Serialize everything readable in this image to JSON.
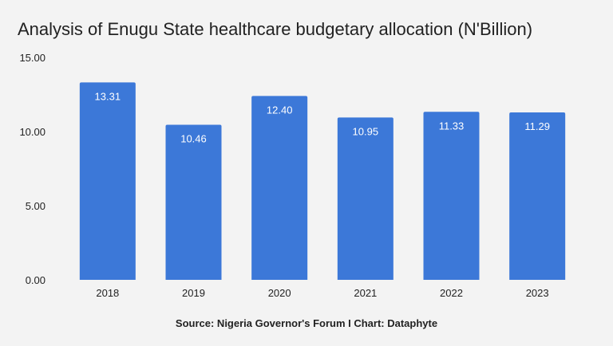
{
  "chart_data": {
    "type": "bar",
    "title": "Analysis of Enugu State healthcare budgetary allocation (N'Billion)",
    "categories": [
      "2018",
      "2019",
      "2020",
      "2021",
      "2022",
      "2023"
    ],
    "values": [
      13.31,
      10.46,
      12.4,
      10.95,
      11.33,
      11.29
    ],
    "data_labels": [
      "13.31",
      "10.46",
      "12.40",
      "10.95",
      "11.33",
      "11.29"
    ],
    "ylim": [
      0,
      15
    ],
    "yticks": [
      "0.00",
      "5.00",
      "10.00",
      "15.00"
    ],
    "xlabel": "",
    "ylabel": "",
    "grid": false,
    "legend": "none",
    "bar_color": "#3c78d8",
    "background": "#f3f3f3",
    "source": "Source: Nigeria Governor's Forum I Chart: Dataphyte"
  }
}
